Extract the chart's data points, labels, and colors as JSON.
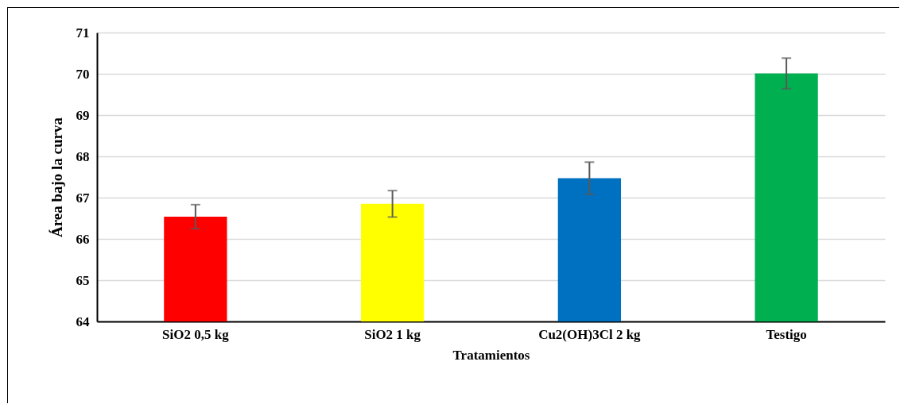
{
  "chart_data": {
    "type": "bar",
    "xlabel": "Tratamientos",
    "ylabel": "Área bajo la curva",
    "categories": [
      "SiO2 0,5 kg",
      "SiO2 1 kg",
      "Cu2(OH)3Cl 2 kg",
      "Testigo"
    ],
    "values": [
      66.54,
      66.85,
      67.47,
      70.01
    ],
    "colors": [
      "#ff0000",
      "#ffff00",
      "#0070c0",
      "#00b050"
    ],
    "errors": [
      0.29,
      0.32,
      0.39,
      0.37
    ],
    "ylim": [
      64,
      71
    ],
    "yticks": [
      64,
      65,
      66,
      67,
      68,
      69,
      70,
      71
    ],
    "grid": "y"
  }
}
